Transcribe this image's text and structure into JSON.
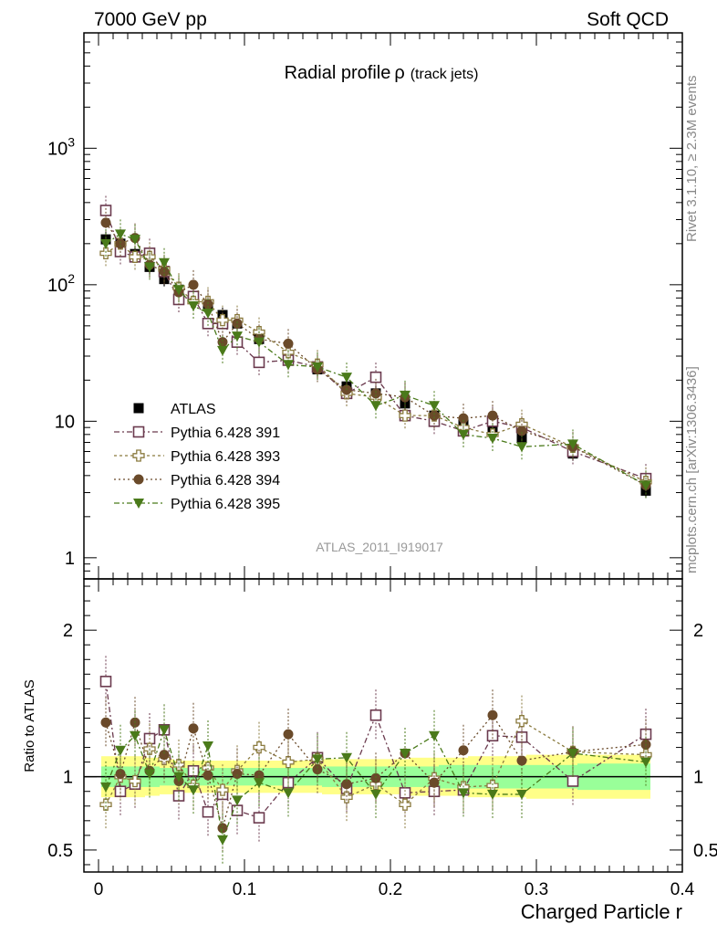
{
  "header": {
    "left": "7000 GeV pp",
    "right": "Soft QCD"
  },
  "side_labels": {
    "top": "Rivet 3.1.10, ≥ 2.3M events",
    "bottom": "mcplots.cern.ch [arXiv:1306.3436]"
  },
  "chart_data": [
    {
      "type": "scatter",
      "title": "Radial profile",
      "title_symbol": "ρ",
      "title_suffix": "(track jets)",
      "analysis_label": "ATLAS_2011_I919017",
      "xlabel": "Charged Particle r",
      "ylabel": "",
      "yscale": "log",
      "xlim": [
        -0.01,
        0.4
      ],
      "ylim": [
        0.7,
        7000
      ],
      "yticks": [
        {
          "v": 1,
          "label": "1"
        },
        {
          "v": 10,
          "label": "10"
        },
        {
          "v": 100,
          "label": "10",
          "sup": "2"
        },
        {
          "v": 1000,
          "label": "10",
          "sup": "3"
        }
      ],
      "legend_position": "bottom-left",
      "x": [
        0.005,
        0.015,
        0.025,
        0.035,
        0.045,
        0.055,
        0.065,
        0.075,
        0.085,
        0.095,
        0.11,
        0.13,
        0.15,
        0.17,
        0.19,
        0.21,
        0.23,
        0.25,
        0.27,
        0.29,
        0.325,
        0.375
      ],
      "series": [
        {
          "name": "ATLAS",
          "color": "#000000",
          "marker": "filled-square",
          "values": [
            215,
            200,
            168,
            135,
            110,
            92,
            80,
            70,
            60,
            52,
            40,
            30,
            24,
            18,
            16,
            13.5,
            11,
            9.5,
            8.5,
            7.5,
            5.8,
            3.1
          ]
        },
        {
          "name": "Pythia 6.428 391",
          "color": "#6b3a4e",
          "marker": "open-square",
          "values": [
            350,
            175,
            160,
            170,
            125,
            78,
            82,
            52,
            52,
            38,
            27,
            28,
            25,
            16,
            21,
            11,
            10,
            8.5,
            10,
            9,
            6,
            3.8
          ]
        },
        {
          "name": "Pythia 6.428 393",
          "color": "#8a7a3e",
          "marker": "open-cross",
          "values": [
            170,
            200,
            160,
            160,
            130,
            95,
            75,
            75,
            55,
            55,
            45,
            32,
            26,
            16,
            15,
            11,
            11,
            9,
            8,
            9.5,
            6.5,
            3.6
          ]
        },
        {
          "name": "Pythia 6.428 394",
          "color": "#6a4a2a",
          "marker": "filled-circle",
          "values": [
            285,
            200,
            220,
            140,
            125,
            88,
            100,
            72,
            38,
            52,
            40,
            37,
            24,
            17,
            16,
            15,
            11,
            10.5,
            11,
            8.5,
            6.5,
            3.4
          ]
        },
        {
          "name": "Pythia 6.428 395",
          "color": "#4a7a1a",
          "marker": "filled-triangle-down",
          "values": [
            200,
            235,
            215,
            135,
            145,
            92,
            70,
            62,
            33,
            42,
            38,
            26,
            25,
            21,
            13,
            15.5,
            13,
            8,
            7.5,
            6.5,
            6.8,
            3.4
          ]
        }
      ]
    },
    {
      "type": "scatter",
      "ylabel": "Ratio to ATLAS",
      "xlabel": "Charged Particle r",
      "xlim": [
        -0.01,
        0.4
      ],
      "ylim": [
        0.35,
        2.35
      ],
      "xticks": [
        {
          "v": 0,
          "label": "0"
        },
        {
          "v": 0.1,
          "label": "0.1"
        },
        {
          "v": 0.2,
          "label": "0.2"
        },
        {
          "v": 0.3,
          "label": "0.3"
        },
        {
          "v": 0.4,
          "label": "0.4"
        }
      ],
      "yticks": [
        {
          "v": 0.5,
          "label": "0.5"
        },
        {
          "v": 1,
          "label": "1"
        },
        {
          "v": 2,
          "label": "2"
        }
      ],
      "band_colors": {
        "inner": "#99ff99",
        "outer": "#ffff88"
      },
      "x": [
        0.005,
        0.015,
        0.025,
        0.035,
        0.045,
        0.055,
        0.065,
        0.075,
        0.085,
        0.095,
        0.11,
        0.13,
        0.15,
        0.17,
        0.19,
        0.21,
        0.23,
        0.25,
        0.27,
        0.29,
        0.325,
        0.375
      ],
      "band_inner": [
        0.07,
        0.07,
        0.07,
        0.07,
        0.06,
        0.06,
        0.06,
        0.06,
        0.06,
        0.06,
        0.06,
        0.06,
        0.06,
        0.07,
        0.07,
        0.07,
        0.07,
        0.08,
        0.08,
        0.08,
        0.08,
        0.09
      ],
      "band_outer": [
        0.14,
        0.14,
        0.14,
        0.13,
        0.12,
        0.11,
        0.11,
        0.11,
        0.11,
        0.11,
        0.11,
        0.11,
        0.11,
        0.12,
        0.12,
        0.12,
        0.13,
        0.13,
        0.14,
        0.14,
        0.15,
        0.15
      ],
      "series": [
        {
          "name": "Pythia 6.428 391",
          "color": "#6b3a4e",
          "marker": "open-square",
          "values": [
            1.65,
            0.9,
            0.95,
            1.26,
            1.32,
            0.87,
            1.04,
            0.76,
            0.88,
            0.77,
            0.72,
            0.96,
            1.13,
            0.92,
            1.42,
            0.89,
            0.9,
            0.91,
            1.28,
            1.27,
            0.97,
            1.29
          ]
        },
        {
          "name": "Pythia 6.428 393",
          "color": "#8a7a3e",
          "marker": "open-cross",
          "values": [
            0.81,
            1.0,
            0.97,
            1.19,
            1.12,
            1.08,
            0.94,
            1.06,
            0.91,
            1.04,
            1.2,
            1.1,
            1.12,
            0.86,
            0.95,
            0.81,
            0.99,
            0.93,
            0.94,
            1.38,
            1.17,
            1.15
          ]
        },
        {
          "name": "Pythia 6.428 394",
          "color": "#6a4a2a",
          "marker": "filled-circle",
          "values": [
            1.37,
            1.02,
            1.37,
            1.04,
            1.15,
            0.97,
            1.33,
            1.01,
            0.65,
            1.02,
            1.01,
            1.29,
            1.05,
            0.95,
            0.99,
            1.16,
            0.96,
            1.18,
            1.42,
            1.11,
            1.17,
            1.22
          ]
        },
        {
          "name": "Pythia 6.428 395",
          "color": "#4a7a1a",
          "marker": "filled-triangle-down",
          "values": [
            0.93,
            1.18,
            1.28,
            1.02,
            1.32,
            1.0,
            0.91,
            1.21,
            0.57,
            0.84,
            0.96,
            0.89,
            1.12,
            1.13,
            0.88,
            1.16,
            1.28,
            0.89,
            0.88,
            0.88,
            1.16,
            1.1
          ]
        }
      ]
    }
  ]
}
